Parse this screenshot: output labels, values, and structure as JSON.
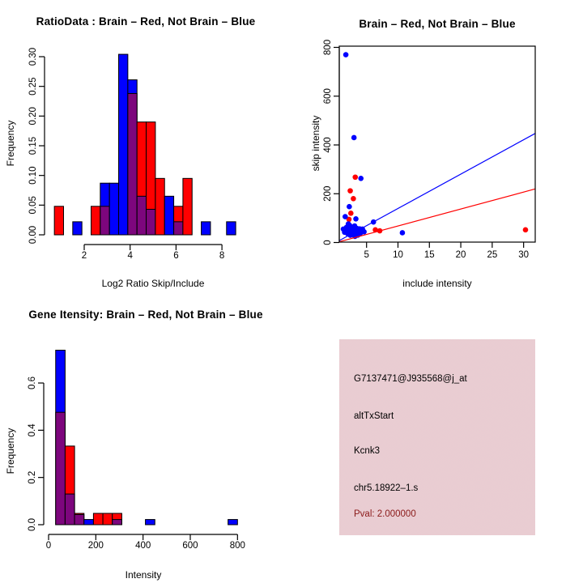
{
  "figure": {
    "background": "#ffffff",
    "colors": {
      "red": "#ff0000",
      "blue": "#0000ff",
      "overlap": "#7d067d",
      "outline": "#000000",
      "info_bg": "#e9c8d3",
      "pval_text": "#8b1a1a",
      "text": "#000000"
    }
  },
  "chart_data": [
    {
      "id": "ratio_histogram",
      "type": "bar",
      "title": "RatioData : Brain – Red, Not Brain – Blue",
      "xlabel": "Log2 Ratio Skip/Include",
      "ylabel": "Frequency",
      "x_ticks": [
        "2",
        "4",
        "6",
        "8"
      ],
      "y_ticks": [
        "0.00",
        "0.05",
        "0.10",
        "0.15",
        "0.20",
        "0.25",
        "0.30"
      ],
      "xlim": [
        0.3,
        8.9
      ],
      "ylim": [
        0,
        0.305
      ],
      "grid": false,
      "bin_width": 0.4,
      "series_legend": {
        "red": "Brain",
        "blue": "Not Brain",
        "purple": "overlap"
      },
      "bins": [
        {
          "x": 0.9,
          "red": 0.048,
          "blue": 0
        },
        {
          "x": 1.7,
          "red": 0,
          "blue": 0.022
        },
        {
          "x": 2.5,
          "red": 0.048,
          "blue": 0
        },
        {
          "x": 2.9,
          "red": 0.048,
          "blue": 0.087
        },
        {
          "x": 3.3,
          "red": 0,
          "blue": 0.087
        },
        {
          "x": 3.7,
          "red": 0,
          "blue": 0.304
        },
        {
          "x": 4.1,
          "red": 0.238,
          "blue": 0.261
        },
        {
          "x": 4.5,
          "red": 0.19,
          "blue": 0.065
        },
        {
          "x": 4.9,
          "red": 0.19,
          "blue": 0.043
        },
        {
          "x": 5.3,
          "red": 0.095,
          "blue": 0
        },
        {
          "x": 5.7,
          "red": 0,
          "blue": 0.065
        },
        {
          "x": 6.1,
          "red": 0.048,
          "blue": 0.022
        },
        {
          "x": 6.5,
          "red": 0.095,
          "blue": 0
        },
        {
          "x": 7.3,
          "red": 0,
          "blue": 0.022
        },
        {
          "x": 8.4,
          "red": 0,
          "blue": 0.022
        }
      ]
    },
    {
      "id": "skip_include_scatter",
      "type": "scatter",
      "title": "Brain – Red, Not Brain – Blue",
      "xlabel": "include intensity",
      "ylabel": "skip intensity",
      "x_ticks": [
        "5",
        "10",
        "15",
        "20",
        "25",
        "30"
      ],
      "y_ticks": [
        "0",
        "200",
        "400",
        "600",
        "800"
      ],
      "xlim": [
        0.6,
        31.9
      ],
      "ylim": [
        0,
        805
      ],
      "grid": false,
      "series": [
        {
          "name": "brain_red",
          "color": "red",
          "points": [
            [
              3.2,
              268
            ],
            [
              2.4,
              212
            ],
            [
              2.9,
              180
            ],
            [
              2.5,
              120
            ],
            [
              2.2,
              95
            ],
            [
              2.3,
              70
            ],
            [
              1.9,
              45
            ],
            [
              2.1,
              58
            ],
            [
              2.7,
              40
            ],
            [
              2.45,
              30
            ],
            [
              6.4,
              52
            ],
            [
              7.1,
              48
            ],
            [
              30.3,
              52
            ]
          ]
        },
        {
          "name": "not_brain_blue",
          "color": "blue",
          "points": [
            [
              1.7,
              770
            ],
            [
              3.0,
              430
            ],
            [
              4.1,
              263
            ],
            [
              2.25,
              147
            ],
            [
              1.6,
              106
            ],
            [
              3.3,
              97
            ],
            [
              6.1,
              84
            ],
            [
              10.7,
              40
            ],
            [
              1.3,
              55
            ],
            [
              1.5,
              42
            ],
            [
              1.8,
              62
            ],
            [
              1.9,
              50
            ],
            [
              2.0,
              36
            ],
            [
              2.1,
              76
            ],
            [
              2.2,
              52
            ],
            [
              2.3,
              70
            ],
            [
              2.35,
              58
            ],
            [
              2.4,
              30
            ],
            [
              2.5,
              64
            ],
            [
              2.6,
              40
            ],
            [
              2.7,
              46
            ],
            [
              2.8,
              58
            ],
            [
              2.9,
              34
            ],
            [
              3.0,
              52
            ],
            [
              3.1,
              68
            ],
            [
              3.15,
              25
            ],
            [
              3.2,
              40
            ],
            [
              3.3,
              44
            ],
            [
              3.45,
              58
            ],
            [
              3.6,
              30
            ],
            [
              3.7,
              48
            ],
            [
              3.9,
              56
            ],
            [
              4.0,
              38
            ],
            [
              4.2,
              46
            ],
            [
              4.35,
              55
            ],
            [
              4.6,
              44
            ]
          ]
        }
      ],
      "lines": [
        {
          "name": "blue_fit",
          "color": "blue",
          "x1": 0.66,
          "y1": 8,
          "x2": 31.9,
          "y2": 448
        },
        {
          "name": "red_fit",
          "color": "red",
          "x1": 0.66,
          "y1": 3,
          "x2": 31.9,
          "y2": 220
        }
      ]
    },
    {
      "id": "gene_intensity_histogram",
      "type": "bar",
      "title": "Gene Itensity: Brain – Red, Not Brain – Blue",
      "xlabel": "Intensity",
      "ylabel": "Frequency",
      "x_ticks": [
        "0",
        "200",
        "400",
        "600",
        "800"
      ],
      "y_ticks": [
        "0.0",
        "0.2",
        "0.4",
        "0.6"
      ],
      "xlim": [
        0,
        820
      ],
      "ylim": [
        0,
        0.76
      ],
      "grid": false,
      "bin_width": 40,
      "series_legend": {
        "red": "Brain",
        "blue": "Not Brain",
        "purple": "overlap"
      },
      "bins": [
        {
          "x": 50,
          "red": 0.476,
          "blue": 0.739
        },
        {
          "x": 90,
          "red": 0.333,
          "blue": 0.13
        },
        {
          "x": 130,
          "red": 0.048,
          "blue": 0.043
        },
        {
          "x": 170,
          "red": 0,
          "blue": 0.022
        },
        {
          "x": 210,
          "red": 0.048,
          "blue": 0
        },
        {
          "x": 250,
          "red": 0.048,
          "blue": 0
        },
        {
          "x": 290,
          "red": 0.048,
          "blue": 0.022
        },
        {
          "x": 430,
          "red": 0,
          "blue": 0.022
        },
        {
          "x": 780,
          "red": 0,
          "blue": 0.022
        }
      ]
    }
  ],
  "info_panel": {
    "lines": [
      {
        "id": "probe_id",
        "text": "G7137471@J935568@j_at"
      },
      {
        "id": "event_type",
        "text": "altTxStart"
      },
      {
        "id": "gene_symbol",
        "text": "Kcnk3"
      },
      {
        "id": "region_id",
        "text": "chr5.18922–1.s"
      },
      {
        "id": "pval",
        "text": "Pval: 2.000000"
      }
    ]
  }
}
